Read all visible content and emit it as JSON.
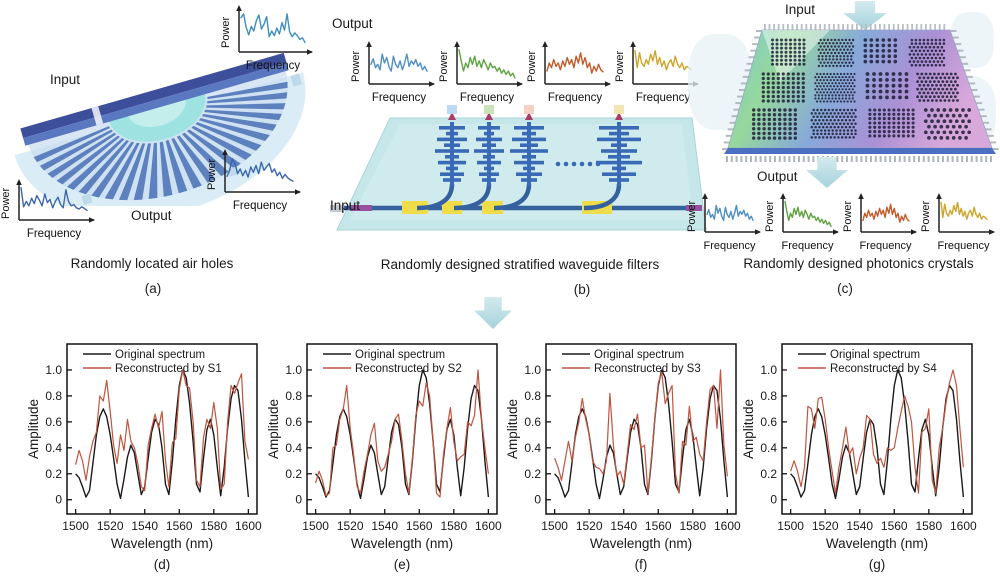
{
  "figure_panels": {
    "a": {
      "input_label": "Input",
      "output_label": "Output",
      "caption": "Randomly located air holes",
      "tag": "(a)"
    },
    "b": {
      "output_label": "Output",
      "input_label": "Input",
      "caption": "Randomly designed stratified waveguide filters",
      "tag": "(b)"
    },
    "c": {
      "input_label": "Input",
      "output_label": "Output",
      "caption": "Randomly designed photonics crystals",
      "tag": "(c)"
    }
  },
  "inset_axes": {
    "xlabel": "Frequency",
    "ylabel": "Power"
  },
  "inset_traces": {
    "a_top": {
      "color": "#3e8fc0",
      "values": [
        0.85,
        0.95,
        0.6,
        0.4,
        0.62,
        0.5,
        0.78,
        0.92,
        0.55,
        0.68,
        0.88,
        0.35,
        0.5,
        0.38,
        0.58,
        0.42,
        0.72,
        0.52,
        0.95,
        0.48,
        0.35,
        0.45,
        0.38,
        0.28,
        0.32,
        0.2
      ]
    },
    "a_left": {
      "color": "#3a68ac",
      "values": [
        0.95,
        0.35,
        0.52,
        0.38,
        0.62,
        0.45,
        0.7,
        0.55,
        0.38,
        0.75,
        0.48,
        0.58,
        0.32,
        0.52,
        0.65,
        0.42,
        0.32,
        0.88,
        0.52,
        0.38,
        0.42,
        0.32,
        0.28,
        0.35,
        0.3,
        0.24
      ]
    },
    "a_right": {
      "color": "#3a68ac",
      "values": [
        0.4,
        0.58,
        0.92,
        0.78,
        0.48,
        0.62,
        0.42,
        0.58,
        0.38,
        0.68,
        0.52,
        0.72,
        0.48,
        0.82,
        0.58,
        0.68,
        0.78,
        0.52,
        0.62,
        0.42,
        0.52,
        0.34,
        0.46,
        0.36,
        0.3,
        0.26
      ]
    },
    "blue": {
      "color": "#4e8fc4",
      "values": [
        0.52,
        0.68,
        0.42,
        0.52,
        0.36,
        0.82,
        0.56,
        0.72,
        0.46,
        0.32,
        0.76,
        0.52,
        0.42,
        0.62,
        0.36,
        0.56,
        0.82,
        0.46,
        0.62,
        0.52,
        0.66,
        0.46,
        0.56,
        0.36,
        0.46,
        0.32
      ]
    },
    "green": {
      "color": "#5fa33e",
      "values": [
        0.95,
        0.62,
        0.32,
        0.56,
        0.42,
        0.72,
        0.52,
        0.76,
        0.46,
        0.62,
        0.42,
        0.66,
        0.52,
        0.36,
        0.56,
        0.42,
        0.46,
        0.32,
        0.42,
        0.26,
        0.36,
        0.22,
        0.32,
        0.18,
        0.26,
        0.12
      ]
    },
    "orange": {
      "color": "#c55a28",
      "values": [
        0.32,
        0.56,
        0.42,
        0.66,
        0.46,
        0.56,
        0.36,
        0.62,
        0.46,
        0.72,
        0.52,
        0.66,
        0.42,
        0.76,
        0.56,
        0.86,
        0.52,
        0.72,
        0.42,
        0.56,
        0.26,
        0.46,
        0.32,
        0.52,
        0.36,
        0.3
      ]
    },
    "yellow": {
      "color": "#cfa42a",
      "values": [
        0.92,
        0.42,
        0.86,
        0.56,
        0.46,
        0.66,
        0.52,
        0.82,
        0.62,
        0.92,
        0.52,
        0.72,
        0.46,
        0.62,
        0.36,
        0.56,
        0.66,
        0.46,
        0.76,
        0.52,
        0.42,
        0.56,
        0.36,
        0.46,
        0.42,
        0.36
      ]
    }
  },
  "chart_data": {
    "type": "line",
    "xlabel": "Wavelength (nm)",
    "ylabel": "Amplitude",
    "xticks": [
      1500,
      1520,
      1540,
      1560,
      1580,
      1600
    ],
    "yticks": [
      0,
      0.2,
      0.4,
      0.6,
      0.8,
      1.0
    ],
    "xlim": [
      1495,
      1605
    ],
    "ylim": [
      -0.11,
      1.2
    ],
    "grid": false,
    "legend_position": "top-inside",
    "x": [
      1500,
      1502,
      1504,
      1506,
      1508,
      1510,
      1512,
      1514,
      1516,
      1518,
      1520,
      1522,
      1524,
      1526,
      1528,
      1530,
      1532,
      1534,
      1536,
      1538,
      1540,
      1542,
      1544,
      1546,
      1548,
      1550,
      1552,
      1554,
      1556,
      1558,
      1560,
      1562,
      1564,
      1566,
      1568,
      1570,
      1572,
      1574,
      1576,
      1578,
      1580,
      1582,
      1584,
      1586,
      1588,
      1590,
      1592,
      1594,
      1596,
      1598,
      1600
    ],
    "original": {
      "name": "Original spectrum",
      "color": "#1a1a1a",
      "values": [
        0.2,
        0.17,
        0.1,
        0.02,
        0.07,
        0.28,
        0.5,
        0.64,
        0.7,
        0.64,
        0.5,
        0.32,
        0.12,
        0.01,
        0.16,
        0.33,
        0.42,
        0.36,
        0.2,
        0.04,
        0.1,
        0.32,
        0.52,
        0.62,
        0.58,
        0.4,
        0.12,
        0.04,
        0.3,
        0.62,
        0.88,
        1.0,
        0.94,
        0.74,
        0.45,
        0.12,
        0.06,
        0.32,
        0.54,
        0.62,
        0.5,
        0.25,
        0.03,
        0.25,
        0.55,
        0.78,
        0.88,
        0.84,
        0.62,
        0.3,
        0.02
      ]
    },
    "reconstructions": [
      {
        "name": "Reconstructed by S1",
        "tag": "(d)",
        "color": "#c05540",
        "values": [
          0.27,
          0.38,
          0.3,
          0.15,
          0.33,
          0.45,
          0.52,
          0.8,
          0.76,
          0.92,
          0.68,
          0.42,
          0.28,
          0.5,
          0.38,
          0.62,
          0.45,
          0.4,
          0.28,
          0.1,
          0.07,
          0.42,
          0.55,
          0.66,
          0.55,
          0.68,
          0.3,
          0.1,
          0.44,
          0.47,
          0.85,
          1.0,
          0.88,
          0.86,
          0.6,
          0.15,
          0.1,
          0.48,
          0.62,
          0.55,
          0.75,
          0.55,
          0.08,
          0.12,
          0.6,
          0.88,
          0.82,
          0.9,
          0.97,
          0.45,
          0.31
        ]
      },
      {
        "name": "Reconstructed by S2",
        "tag": "(e)",
        "color": "#c05540",
        "values": [
          0.13,
          0.22,
          0.15,
          0.03,
          0.05,
          0.4,
          0.42,
          0.62,
          0.7,
          0.88,
          0.55,
          0.35,
          0.1,
          0.05,
          0.22,
          0.35,
          0.5,
          0.59,
          0.3,
          0.22,
          0.25,
          0.35,
          0.45,
          0.62,
          0.66,
          0.45,
          0.2,
          0.05,
          0.32,
          0.65,
          0.76,
          0.72,
          0.9,
          0.8,
          0.45,
          0.05,
          0.02,
          0.35,
          0.55,
          0.71,
          0.45,
          0.3,
          0.33,
          0.35,
          0.6,
          0.57,
          0.65,
          1.0,
          0.62,
          0.4,
          0.2
        ]
      },
      {
        "name": "Reconstructed by S3",
        "tag": "(f)",
        "color": "#c05540",
        "values": [
          0.32,
          0.25,
          0.15,
          0.3,
          0.45,
          0.3,
          0.48,
          0.6,
          0.78,
          0.62,
          0.5,
          0.3,
          0.25,
          0.24,
          0.2,
          0.3,
          0.82,
          0.42,
          0.18,
          0.22,
          0.12,
          0.35,
          0.58,
          0.54,
          0.66,
          0.4,
          0.42,
          0.05,
          0.32,
          0.62,
          0.9,
          0.98,
          0.74,
          0.82,
          0.88,
          0.2,
          0.05,
          0.45,
          0.42,
          0.72,
          0.45,
          0.48,
          0.35,
          0.3,
          0.6,
          0.85,
          0.88,
          0.55,
          1.0,
          0.42,
          0.18
        ]
      },
      {
        "name": "Reconstructed by S4",
        "tag": "(g)",
        "color": "#c05540",
        "values": [
          0.22,
          0.3,
          0.22,
          0.1,
          0.25,
          0.72,
          0.7,
          0.55,
          0.78,
          0.79,
          0.62,
          0.4,
          0.22,
          0.05,
          0.25,
          0.4,
          0.56,
          0.35,
          0.4,
          0.2,
          0.32,
          0.4,
          0.65,
          0.62,
          0.35,
          0.28,
          0.32,
          0.25,
          0.4,
          0.38,
          0.4,
          0.55,
          0.68,
          0.8,
          0.72,
          0.6,
          0.25,
          0.05,
          0.52,
          0.55,
          0.7,
          0.15,
          0.05,
          0.4,
          0.55,
          0.75,
          0.9,
          1.0,
          0.88,
          0.55,
          0.25
        ]
      }
    ]
  }
}
